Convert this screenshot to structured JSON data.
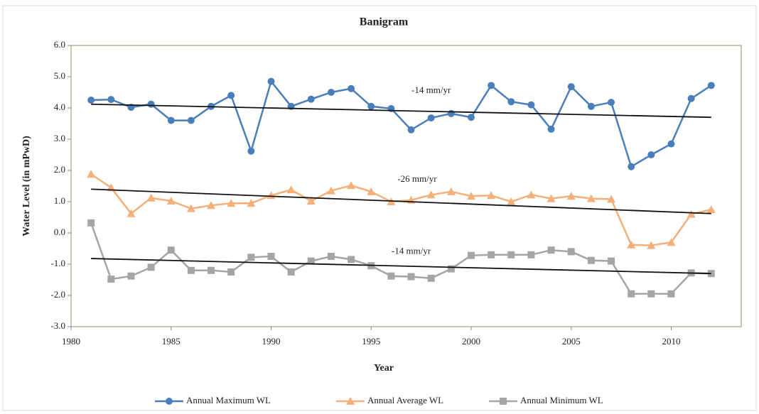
{
  "chart_data": {
    "type": "line",
    "title": "Banigram",
    "x_label": "Year",
    "y_label": "Water Level (in mPwD)",
    "x": [
      1981,
      1982,
      1983,
      1984,
      1985,
      1986,
      1987,
      1988,
      1989,
      1990,
      1991,
      1992,
      1993,
      1994,
      1995,
      1996,
      1997,
      1998,
      1999,
      2000,
      2001,
      2002,
      2003,
      2004,
      2005,
      2006,
      2007,
      2008,
      2009,
      2010,
      2011,
      2012
    ],
    "series": [
      {
        "name": "Annual Maximum WL",
        "color": "#4a7ebb",
        "marker": "circle",
        "values": [
          4.25,
          4.27,
          4.02,
          4.12,
          3.6,
          3.6,
          4.05,
          4.4,
          2.62,
          4.85,
          4.05,
          4.28,
          4.5,
          4.62,
          4.05,
          3.98,
          3.3,
          3.68,
          3.82,
          3.7,
          4.72,
          4.2,
          4.1,
          3.32,
          4.68,
          4.05,
          4.18,
          2.12,
          2.5,
          2.85,
          4.3,
          4.72
        ],
        "trend": [
          4.12,
          3.7
        ],
        "trend_label": "-14 mm/yr"
      },
      {
        "name": "Annual Average WL",
        "color": "#f5b07a",
        "marker": "triangle",
        "values": [
          1.88,
          1.45,
          0.62,
          1.12,
          1.02,
          0.78,
          0.88,
          0.95,
          0.95,
          1.2,
          1.38,
          1.02,
          1.35,
          1.52,
          1.32,
          1.0,
          1.05,
          1.22,
          1.32,
          1.18,
          1.2,
          1.0,
          1.22,
          1.1,
          1.18,
          1.1,
          1.08,
          -0.38,
          -0.4,
          -0.3,
          0.6,
          0.75
        ],
        "trend": [
          1.4,
          0.62
        ],
        "trend_label": "-26 mm/yr"
      },
      {
        "name": "Annual Minimum WL",
        "color": "#a5a5a5",
        "marker": "square",
        "values": [
          0.32,
          -1.48,
          -1.38,
          -1.1,
          -0.55,
          -1.2,
          -1.2,
          -1.25,
          -0.78,
          -0.75,
          -1.25,
          -0.9,
          -0.75,
          -0.85,
          -1.05,
          -1.38,
          -1.4,
          -1.45,
          -1.15,
          -0.72,
          -0.7,
          -0.7,
          -0.7,
          -0.55,
          -0.6,
          -0.88,
          -0.9,
          -1.95,
          -1.95,
          -1.95,
          -1.28,
          -1.3
        ],
        "trend": [
          -0.82,
          -1.3
        ],
        "trend_label": "-14 mm/yr"
      }
    ],
    "xlim": [
      1980,
      2013.5
    ],
    "xticks": [
      1980,
      1985,
      1990,
      1995,
      2000,
      2005,
      2010
    ],
    "ylim": [
      -3,
      6
    ],
    "yticks": [
      {
        "value": -3,
        "label": "-3.0"
      },
      {
        "value": -2,
        "label": "-2.0"
      },
      {
        "value": -1,
        "label": "-1.0"
      },
      {
        "value": 0,
        "label": "0.0"
      },
      {
        "value": 1,
        "label": "1.0"
      },
      {
        "value": 2,
        "label": "2.0"
      },
      {
        "value": 3,
        "label": "3.0"
      },
      {
        "value": 4,
        "label": "4.0"
      },
      {
        "value": 5,
        "label": "5.0"
      },
      {
        "value": 6,
        "label": "6.0"
      }
    ],
    "grid": false,
    "legend": "bottom"
  }
}
